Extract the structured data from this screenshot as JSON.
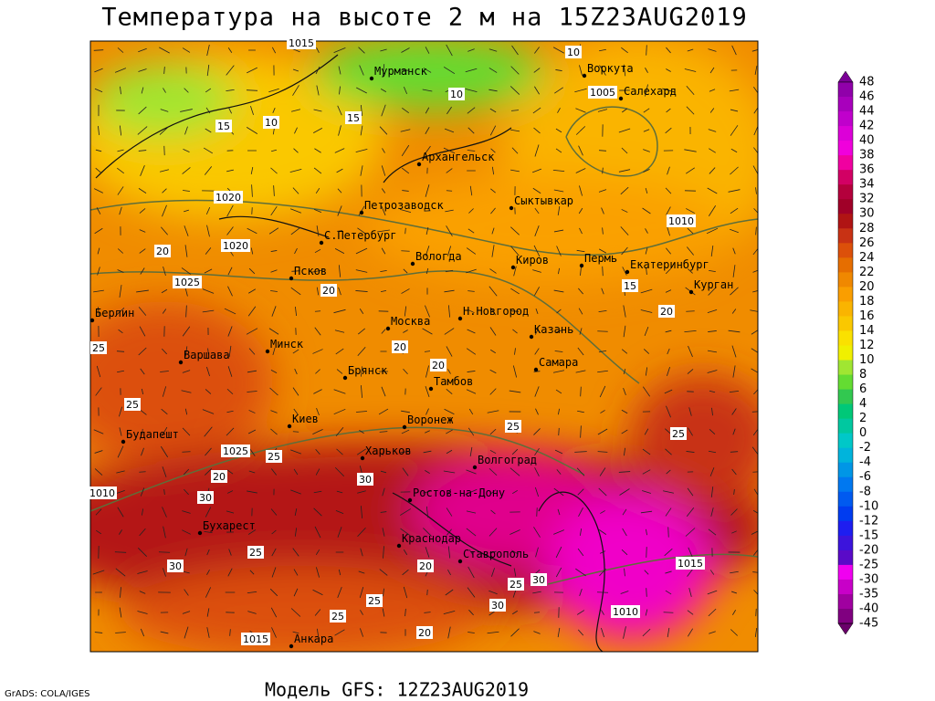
{
  "header": {
    "title": "Температура на высоте 2 м на 15Z23AUG2019"
  },
  "footer": {
    "model": "Модель GFS: 12Z23AUG2019",
    "credit": "GrADS: COLA/IGES"
  },
  "cities": [
    "Мурманск",
    "Воркута",
    "Салехард",
    "Архангельск",
    "Сыктывкар",
    "Петрозаводск",
    "С.Петербург",
    "Вологда",
    "Киров",
    "Пермь",
    "Екатеринбург",
    "Курган",
    "Псков",
    "Берлин",
    "Н.Новгород",
    "Казань",
    "Москва",
    "Минск",
    "Варшава",
    "Брянск",
    "Тамбов",
    "Самара",
    "Киев",
    "Воронеж",
    "Будапешт",
    "Харьков",
    "Волгоград",
    "Ростов-на-Дону",
    "Бухарест",
    "Краснодар",
    "Ставрополь",
    "Анкара"
  ],
  "contour_labels": [
    "1015",
    "1020",
    "1025",
    "1025",
    "1020",
    "1015",
    "1010",
    "1005",
    "1010",
    "1015",
    "1010",
    "10",
    "15",
    "10",
    "15",
    "10",
    "20",
    "20",
    "20",
    "20",
    "25",
    "25",
    "20",
    "30",
    "25",
    "30",
    "20",
    "25",
    "30",
    "25",
    "25",
    "20",
    "25",
    "30",
    "30",
    "25",
    "15",
    "20",
    "25"
  ],
  "colorbar": {
    "labels": [
      48,
      46,
      44,
      42,
      40,
      38,
      36,
      34,
      32,
      30,
      28,
      26,
      24,
      22,
      20,
      18,
      16,
      14,
      12,
      10,
      8,
      6,
      4,
      2,
      0,
      -2,
      -4,
      -6,
      -8,
      -10,
      -12,
      -15,
      -20,
      -25,
      -30,
      -35,
      -40,
      -45
    ],
    "colors": [
      "#7a0096",
      "#9000aa",
      "#a800bc",
      "#c000cc",
      "#dc00d8",
      "#f000dc",
      "#f000a0",
      "#d20064",
      "#b4003c",
      "#a00028",
      "#b01414",
      "#c83214",
      "#dc500a",
      "#e66e00",
      "#f08800",
      "#fa9e00",
      "#fab400",
      "#fac800",
      "#fae100",
      "#f0f000",
      "#a0e632",
      "#64dc32",
      "#32c850",
      "#00c878",
      "#00c8a0",
      "#00c8c8",
      "#00b4dc",
      "#0096e6",
      "#0078f0",
      "#005af0",
      "#003cf0",
      "#1e1ef0",
      "#3c14dc",
      "#5a0ac8",
      "#f000f0",
      "#c800c8",
      "#a000a0",
      "#800080",
      "#6a006a"
    ]
  }
}
